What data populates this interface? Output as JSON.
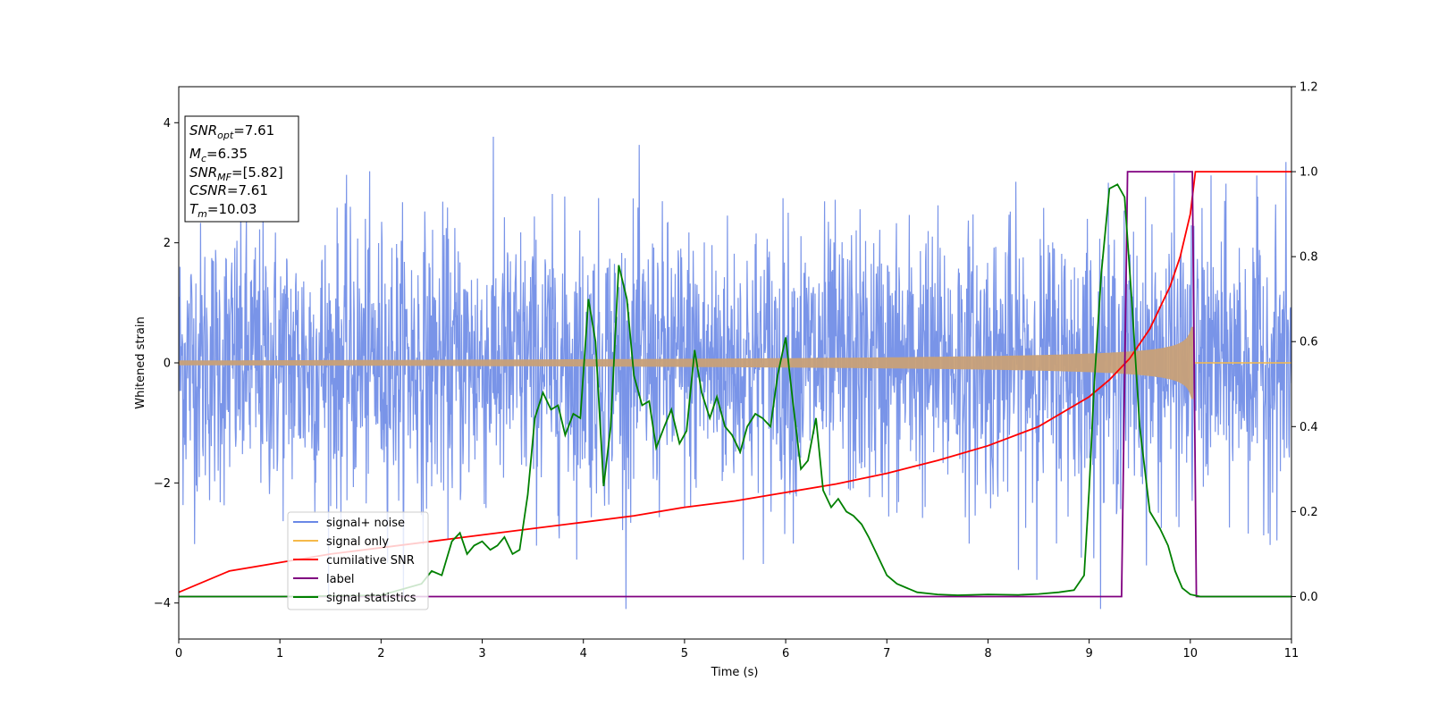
{
  "chart_data": {
    "type": "line",
    "xlabel": "Time (s)",
    "ylabel_left": "Whitened strain",
    "ylabel_right": "",
    "xlim": [
      0,
      11
    ],
    "ylim_left": [
      -4.6,
      4.6
    ],
    "ylim_right": [
      -0.1,
      1.2
    ],
    "x_ticks": [
      "0",
      "1",
      "2",
      "3",
      "4",
      "5",
      "6",
      "7",
      "8",
      "9",
      "10",
      "11"
    ],
    "y_left_ticks": [
      "−4",
      "−2",
      "0",
      "2",
      "4"
    ],
    "y_right_ticks": [
      "0.0",
      "0.2",
      "0.4",
      "0.6",
      "0.8",
      "1.0",
      "1.2"
    ],
    "grid": false,
    "legend_position": "lower-left",
    "info_box": {
      "snr_opt": {
        "base": "SNR",
        "sub": "opt",
        "value": "=7.61"
      },
      "mc": {
        "base": "M",
        "sub": "c",
        "value": "=6.35"
      },
      "snr_mf": {
        "base": "SNR",
        "sub": "MF",
        "value": "=[5.82]"
      },
      "csnr": {
        "base": "CSNR",
        "sub": "",
        "value": "=7.61"
      },
      "tm": {
        "base": "T",
        "sub": "m",
        "value": "=10.03"
      }
    },
    "series": [
      {
        "name": "signal+ noise",
        "color": "#6a88e6",
        "axis": "left",
        "kind": "noise",
        "amplitude_range": [
          -4.1,
          4.2
        ]
      },
      {
        "name": "signal only",
        "color": "#f5b94a",
        "axis": "left",
        "kind": "chirp",
        "amplitude_start": 0.04,
        "amplitude_end": 0.6,
        "merger_time": 10.03
      },
      {
        "name": "cumilative SNR",
        "color": "#ff0000",
        "axis": "right",
        "x": [
          0,
          0.5,
          1,
          1.5,
          2,
          2.5,
          3,
          3.5,
          4,
          4.5,
          5,
          5.5,
          6,
          6.5,
          7,
          7.5,
          8,
          8.5,
          9,
          9.2,
          9.4,
          9.6,
          9.8,
          9.9,
          10.0,
          10.03,
          10.05,
          11
        ],
        "values": [
          0.01,
          0.06,
          0.08,
          0.1,
          0.115,
          0.13,
          0.145,
          0.16,
          0.175,
          0.19,
          0.21,
          0.225,
          0.245,
          0.265,
          0.29,
          0.32,
          0.355,
          0.4,
          0.47,
          0.51,
          0.56,
          0.63,
          0.73,
          0.8,
          0.9,
          0.96,
          1.0,
          1.0
        ]
      },
      {
        "name": "label",
        "color": "#800080",
        "axis": "right",
        "x": [
          0,
          9.32,
          9.38,
          10.02,
          10.06,
          11
        ],
        "values": [
          0,
          0,
          1,
          1,
          0,
          0
        ]
      },
      {
        "name": "signal statistics",
        "color": "#008000",
        "axis": "right",
        "x": [
          0,
          1,
          2,
          2.4,
          2.5,
          2.6,
          2.7,
          2.78,
          2.85,
          2.92,
          3.0,
          3.08,
          3.15,
          3.22,
          3.3,
          3.37,
          3.45,
          3.52,
          3.6,
          3.68,
          3.75,
          3.82,
          3.9,
          3.97,
          4.05,
          4.12,
          4.2,
          4.27,
          4.35,
          4.43,
          4.5,
          4.58,
          4.65,
          4.72,
          4.8,
          4.87,
          4.95,
          5.02,
          5.1,
          5.17,
          5.25,
          5.32,
          5.4,
          5.47,
          5.55,
          5.62,
          5.7,
          5.77,
          5.85,
          5.92,
          6.0,
          6.07,
          6.15,
          6.22,
          6.3,
          6.37,
          6.45,
          6.52,
          6.6,
          6.67,
          6.75,
          6.82,
          6.9,
          7.0,
          7.1,
          7.2,
          7.3,
          7.5,
          7.7,
          8.0,
          8.3,
          8.5,
          8.7,
          8.85,
          8.95,
          9.0,
          9.05,
          9.12,
          9.2,
          9.28,
          9.35,
          9.42,
          9.5,
          9.6,
          9.7,
          9.78,
          9.85,
          9.92,
          10.0,
          10.1,
          10.5,
          11
        ],
        "values": [
          0.0,
          0.0,
          0.003,
          0.03,
          0.06,
          0.05,
          0.13,
          0.15,
          0.1,
          0.12,
          0.13,
          0.11,
          0.12,
          0.14,
          0.1,
          0.11,
          0.24,
          0.42,
          0.48,
          0.44,
          0.45,
          0.38,
          0.43,
          0.42,
          0.7,
          0.6,
          0.26,
          0.4,
          0.78,
          0.7,
          0.52,
          0.45,
          0.46,
          0.35,
          0.4,
          0.44,
          0.36,
          0.39,
          0.58,
          0.48,
          0.42,
          0.47,
          0.4,
          0.38,
          0.34,
          0.4,
          0.43,
          0.42,
          0.4,
          0.52,
          0.61,
          0.46,
          0.3,
          0.32,
          0.42,
          0.25,
          0.21,
          0.23,
          0.2,
          0.19,
          0.17,
          0.14,
          0.1,
          0.05,
          0.03,
          0.02,
          0.01,
          0.005,
          0.003,
          0.005,
          0.004,
          0.006,
          0.01,
          0.015,
          0.05,
          0.25,
          0.5,
          0.76,
          0.96,
          0.97,
          0.94,
          0.7,
          0.4,
          0.2,
          0.16,
          0.12,
          0.06,
          0.02,
          0.005,
          0.0,
          0.0,
          0.0
        ]
      }
    ]
  },
  "legend": {
    "items": [
      {
        "label": "signal+ noise",
        "color": "#6a88e6"
      },
      {
        "label": "signal only",
        "color": "#f5b94a"
      },
      {
        "label": "cumilative SNR",
        "color": "#ff0000"
      },
      {
        "label": "label",
        "color": "#800080"
      },
      {
        "label": "signal statistics",
        "color": "#008000"
      }
    ]
  }
}
